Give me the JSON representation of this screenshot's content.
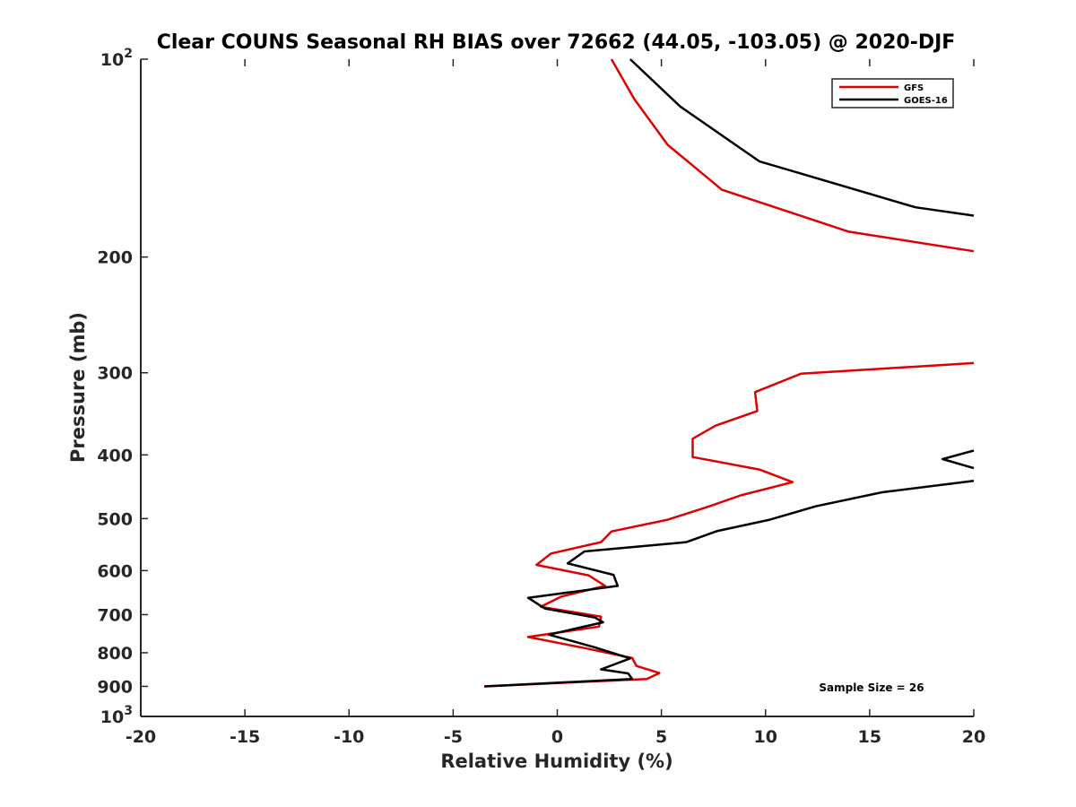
{
  "chart_data": {
    "type": "line",
    "title": "Clear COUNS Seasonal RH BIAS over 72662 (44.05, -103.05) @ 2020-DJF",
    "xlabel": "Relative Humidity (%)",
    "ylabel": "Pressure (mb)",
    "xlim": [
      -20,
      20
    ],
    "ylim": [
      100,
      1000
    ],
    "yscale": "log",
    "y_reversed": true,
    "x_ticks": [
      -20,
      -15,
      -10,
      -5,
      0,
      5,
      10,
      15,
      20
    ],
    "x_tick_labels": [
      "-20",
      "-15",
      "-10",
      "-5",
      "0",
      "5",
      "10",
      "15",
      "20"
    ],
    "y_ticks": [
      100,
      200,
      300,
      400,
      500,
      600,
      700,
      800,
      900,
      1000
    ],
    "y_tick_labels": [
      {
        "base": "10",
        "exp": "2"
      },
      {
        "base": "200",
        "exp": ""
      },
      {
        "base": "300",
        "exp": ""
      },
      {
        "base": "400",
        "exp": ""
      },
      {
        "base": "500",
        "exp": ""
      },
      {
        "base": "600",
        "exp": ""
      },
      {
        "base": "700",
        "exp": ""
      },
      {
        "base": "800",
        "exp": ""
      },
      {
        "base": "900",
        "exp": ""
      },
      {
        "base": "10",
        "exp": "3"
      }
    ],
    "legend_position": "top-right",
    "annotation": "Sample Size = 26",
    "series": [
      {
        "name": "GFS",
        "color": "#e00000",
        "points": [
          [
            2.6,
            100
          ],
          [
            3.7,
            115
          ],
          [
            5.3,
            135
          ],
          [
            7.9,
            158
          ],
          [
            14.0,
            183
          ],
          [
            20.0,
            196
          ],
          [
            null,
            null
          ],
          [
            20.0,
            290
          ],
          [
            11.7,
            301
          ],
          [
            9.5,
            321
          ],
          [
            9.6,
            343
          ],
          [
            7.6,
            361
          ],
          [
            6.5,
            378
          ],
          [
            6.5,
            403
          ],
          [
            9.7,
            421
          ],
          [
            11.3,
            440
          ],
          [
            8.8,
            461
          ],
          [
            7.3,
            479
          ],
          [
            5.3,
            502
          ],
          [
            2.6,
            523
          ],
          [
            2.1,
            543
          ],
          [
            -0.3,
            565
          ],
          [
            -1.0,
            588
          ],
          [
            1.5,
            610
          ],
          [
            2.3,
            633
          ],
          [
            0.2,
            657
          ],
          [
            -0.8,
            681
          ],
          [
            2.1,
            705
          ],
          [
            2.0,
            730
          ],
          [
            -1.4,
            757
          ],
          [
            1.3,
            787
          ],
          [
            3.6,
            815
          ],
          [
            3.8,
            838
          ],
          [
            4.9,
            859
          ],
          [
            4.3,
            877
          ],
          [
            -3.5,
            900
          ]
        ]
      },
      {
        "name": "GOES-16",
        "color": "#000000",
        "points": [
          [
            3.5,
            100
          ],
          [
            5.9,
            118
          ],
          [
            9.7,
            143
          ],
          [
            17.2,
            168
          ],
          [
            20.0,
            173
          ],
          [
            null,
            null
          ],
          [
            20.0,
            394
          ],
          [
            18.5,
            406
          ],
          [
            20.0,
            419
          ],
          [
            null,
            null
          ],
          [
            20.0,
            438
          ],
          [
            15.6,
            456
          ],
          [
            12.4,
            479
          ],
          [
            10.2,
            502
          ],
          [
            7.7,
            522
          ],
          [
            6.2,
            543
          ],
          [
            1.3,
            561
          ],
          [
            0.5,
            585
          ],
          [
            2.7,
            609
          ],
          [
            2.9,
            633
          ],
          [
            -1.4,
            660
          ],
          [
            -0.6,
            685
          ],
          [
            1.8,
            707
          ],
          [
            2.2,
            719
          ],
          [
            -0.4,
            751
          ],
          [
            1.8,
            785
          ],
          [
            3.5,
            816
          ],
          [
            2.1,
            848
          ],
          [
            3.4,
            860
          ],
          [
            3.6,
            877
          ],
          [
            -3.5,
            900
          ]
        ]
      }
    ]
  }
}
